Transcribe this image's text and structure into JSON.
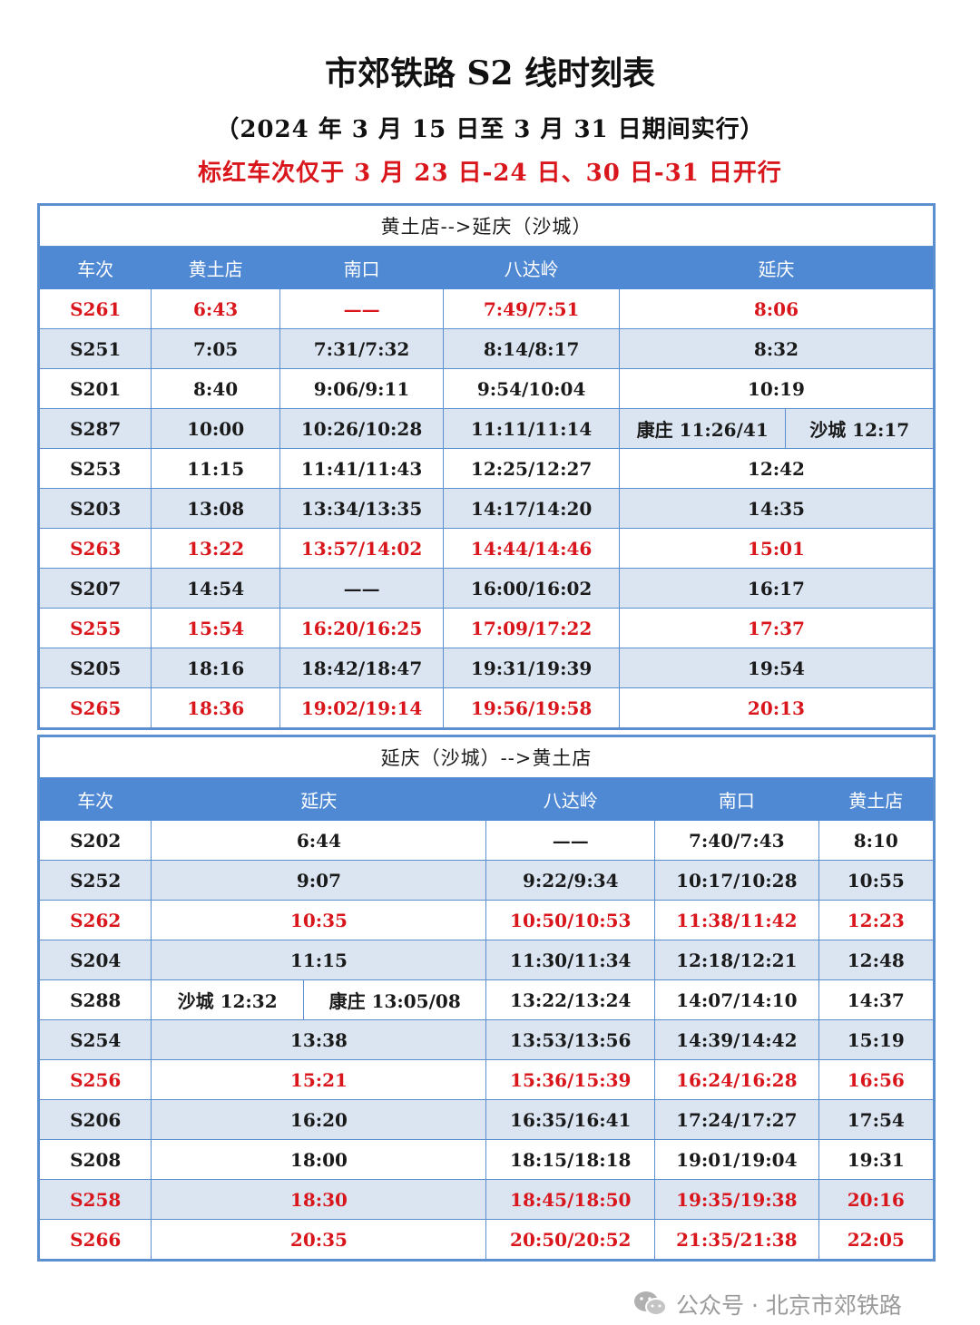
{
  "title": "市郊铁路 S2 线时刻表",
  "subtitle": "（2024 年 3 月 15 日至 3 月 31 日期间实行）",
  "note": "标红车次仅于 3 月 23 日-24 日、30 日-31 日开行",
  "colors": {
    "header": "#4f88d3",
    "alt_row": "#dbe5f2",
    "highlight": "#d9161c"
  },
  "outbound": {
    "caption": "黄土店-->延庆（沙城）",
    "headers": [
      "车次",
      "黄土店",
      "南口",
      "八达岭",
      "延庆"
    ],
    "rows": [
      {
        "train": "S261",
        "c1": "6:43",
        "c2": "——",
        "c3": "7:49/7:51",
        "c4": "8:06",
        "red": true
      },
      {
        "train": "S251",
        "c1": "7:05",
        "c2": "7:31/7:32",
        "c3": "8:14/8:17",
        "c4": "8:32"
      },
      {
        "train": "S201",
        "c1": "8:40",
        "c2": "9:06/9:11",
        "c3": "9:54/10:04",
        "c4": "10:19"
      },
      {
        "train": "S287",
        "c1": "10:00",
        "c2": "10:26/10:28",
        "c3": "11:11/11:14",
        "c4": "康庄 11:26/41",
        "c5": "沙城 12:17"
      },
      {
        "train": "S253",
        "c1": "11:15",
        "c2": "11:41/11:43",
        "c3": "12:25/12:27",
        "c4": "12:42"
      },
      {
        "train": "S203",
        "c1": "13:08",
        "c2": "13:34/13:35",
        "c3": "14:17/14:20",
        "c4": "14:35"
      },
      {
        "train": "S263",
        "c1": "13:22",
        "c2": "13:57/14:02",
        "c3": "14:44/14:46",
        "c4": "15:01",
        "red": true
      },
      {
        "train": "S207",
        "c1": "14:54",
        "c2": "——",
        "c3": "16:00/16:02",
        "c4": "16:17"
      },
      {
        "train": "S255",
        "c1": "15:54",
        "c2": "16:20/16:25",
        "c3": "17:09/17:22",
        "c4": "17:37",
        "red": true
      },
      {
        "train": "S205",
        "c1": "18:16",
        "c2": "18:42/18:47",
        "c3": "19:31/19:39",
        "c4": "19:54"
      },
      {
        "train": "S265",
        "c1": "18:36",
        "c2": "19:02/19:14",
        "c3": "19:56/19:58",
        "c4": "20:13",
        "red": true
      }
    ]
  },
  "inbound": {
    "caption": "延庆（沙城）-->黄土店",
    "headers": [
      "车次",
      "延庆",
      "八达岭",
      "南口",
      "黄土店"
    ],
    "rows": [
      {
        "train": "S202",
        "c1": "6:44",
        "c2": "——",
        "c3": "7:40/7:43",
        "c4": "8:10"
      },
      {
        "train": "S252",
        "c1": "9:07",
        "c2": "9:22/9:34",
        "c3": "10:17/10:28",
        "c4": "10:55"
      },
      {
        "train": "S262",
        "c1": "10:35",
        "c2": "10:50/10:53",
        "c3": "11:38/11:42",
        "c4": "12:23",
        "red": true
      },
      {
        "train": "S204",
        "c1": "11:15",
        "c2": "11:30/11:34",
        "c3": "12:18/12:21",
        "c4": "12:48"
      },
      {
        "train": "S288",
        "c1": "沙城 12:32",
        "c1b": "康庄 13:05/08",
        "c2": "13:22/13:24",
        "c3": "14:07/14:10",
        "c4": "14:37"
      },
      {
        "train": "S254",
        "c1": "13:38",
        "c2": "13:53/13:56",
        "c3": "14:39/14:42",
        "c4": "15:19"
      },
      {
        "train": "S256",
        "c1": "15:21",
        "c2": "15:36/15:39",
        "c3": "16:24/16:28",
        "c4": "16:56",
        "red": true
      },
      {
        "train": "S206",
        "c1": "16:20",
        "c2": "16:35/16:41",
        "c3": "17:24/17:27",
        "c4": "17:54"
      },
      {
        "train": "S208",
        "c1": "18:00",
        "c2": "18:15/18:18",
        "c3": "19:01/19:04",
        "c4": "19:31"
      },
      {
        "train": "S258",
        "c1": "18:30",
        "c2": "18:45/18:50",
        "c3": "19:35/19:38",
        "c4": "20:16",
        "red": true
      },
      {
        "train": "S266",
        "c1": "20:35",
        "c2": "20:50/20:52",
        "c3": "21:35/21:38",
        "c4": "22:05",
        "red": true
      }
    ]
  },
  "watermark": {
    "icon": "wechat-icon",
    "text": "公众号 · 北京市郊铁路"
  }
}
